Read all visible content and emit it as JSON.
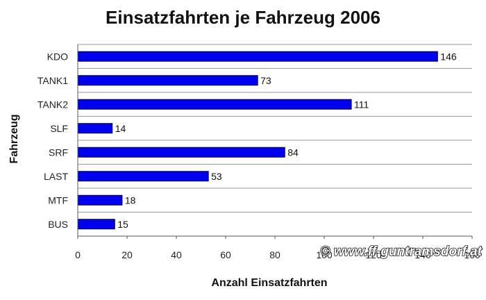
{
  "chart_data": {
    "type": "bar",
    "orientation": "horizontal",
    "title": "Einsatzfahrten je Fahrzeug 2006",
    "xlabel": "Anzahl Einsatzfahrten",
    "ylabel": "Fahrzeug",
    "categories": [
      "KDO",
      "TANK1",
      "TANK2",
      "SLF",
      "SRF",
      "LAST",
      "MTF",
      "BUS"
    ],
    "values": [
      146,
      73,
      111,
      14,
      84,
      53,
      18,
      15
    ],
    "xlim": [
      0,
      160
    ],
    "xticks": [
      0,
      20,
      40,
      60,
      80,
      100,
      120,
      140,
      160
    ],
    "grid": "horizontal",
    "bar_color": "#0000ee",
    "plot_background": "#ffffff",
    "legend": "none"
  },
  "watermark": "© www.ff-guntramsdorf.at"
}
